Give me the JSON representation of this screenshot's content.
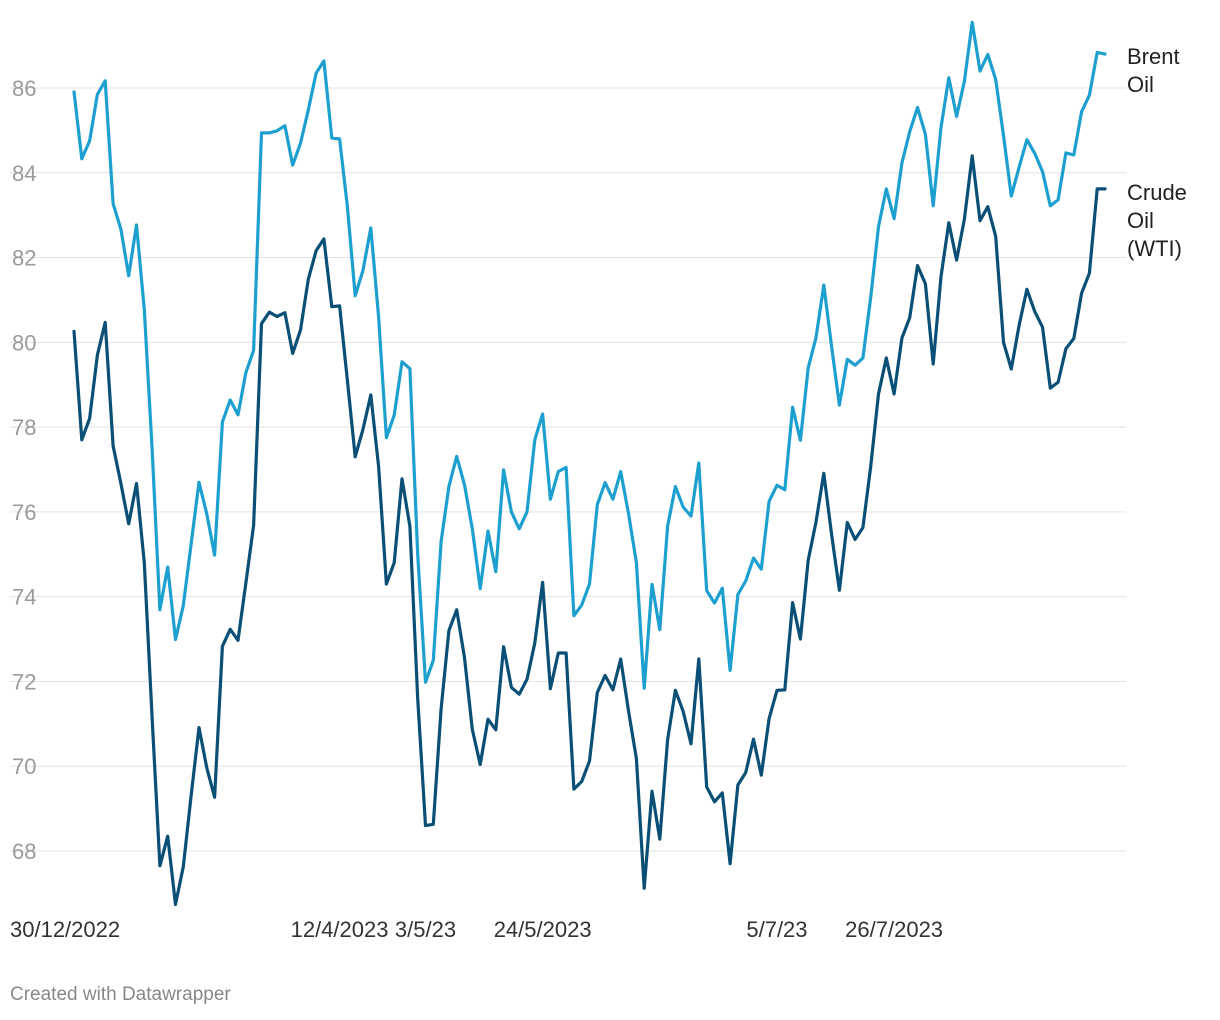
{
  "credit": "Created with Datawrapper",
  "chart_data": {
    "type": "line",
    "title": "",
    "xlabel": "",
    "ylabel": "",
    "ylim": [
      66.8,
      87.8
    ],
    "yticks": [
      68,
      70,
      72,
      74,
      76,
      78,
      80,
      82,
      84,
      86
    ],
    "grid": true,
    "legend": "direct labels at line ends (right)",
    "x_tick_labels": [
      {
        "label": "30/12/2022",
        "index": 0
      },
      {
        "label": "12/4/2023",
        "index": 34
      },
      {
        "label": "3/5/23",
        "index": 45
      },
      {
        "label": "24/5/2023",
        "index": 60
      },
      {
        "label": "5/7/23",
        "index": 90
      },
      {
        "label": "26/7/2023",
        "index": 105
      }
    ],
    "series": [
      {
        "name": "Brent Oil",
        "color": "#1da0cf",
        "values": [
          85.91,
          84.33,
          84.75,
          85.85,
          86.17,
          83.27,
          82.67,
          81.57,
          82.77,
          80.77,
          77.49,
          73.69,
          74.7,
          72.99,
          73.79,
          75.26,
          76.7,
          75.95,
          74.98,
          78.12,
          78.64,
          78.29,
          79.28,
          79.81,
          84.94,
          84.94,
          84.99,
          85.11,
          84.18,
          84.7,
          85.48,
          86.35,
          86.64,
          84.82,
          84.8,
          83.2,
          81.1,
          81.7,
          82.7,
          80.6,
          77.75,
          78.28,
          79.54,
          79.38,
          75.0,
          71.98,
          72.5,
          75.3,
          76.6,
          77.31,
          76.64,
          75.6,
          74.19,
          75.55,
          74.59,
          76.99,
          76.0,
          75.6,
          76.0,
          77.7,
          78.31,
          76.3,
          76.95,
          77.05,
          73.55,
          73.8,
          74.3,
          76.17,
          76.69,
          76.3,
          76.95,
          75.95,
          74.8,
          71.84,
          74.29,
          73.22,
          75.66,
          76.6,
          76.11,
          75.9,
          77.15,
          74.14,
          73.85,
          74.2,
          72.26,
          74.05,
          74.37,
          74.91,
          74.65,
          76.25,
          76.63,
          76.52,
          78.47,
          77.69,
          79.4,
          80.11,
          81.35,
          79.9,
          78.52,
          79.6,
          79.46,
          79.63,
          81.06,
          82.73,
          83.62,
          82.92,
          84.23,
          84.97,
          85.54,
          84.91,
          83.22,
          85.07,
          86.24,
          85.33,
          86.16,
          87.55,
          86.4,
          86.79,
          86.2,
          84.88,
          83.45,
          84.13,
          84.78,
          84.46,
          84.03,
          83.22,
          83.36,
          84.47,
          84.42,
          85.44,
          85.83,
          86.84,
          86.8
        ]
      },
      {
        "name": "Crude Oil (WTI)",
        "color": "#0a4f75",
        "values": [
          80.26,
          77.7,
          78.2,
          79.7,
          80.47,
          77.56,
          76.67,
          75.72,
          76.67,
          74.8,
          71.15,
          67.65,
          68.35,
          66.74,
          67.63,
          69.32,
          70.91,
          69.96,
          69.27,
          72.83,
          73.23,
          72.97,
          74.31,
          75.68,
          80.44,
          80.71,
          80.61,
          80.7,
          79.74,
          80.29,
          81.49,
          82.16,
          82.44,
          80.84,
          80.86,
          79.1,
          77.3,
          77.95,
          78.76,
          77.07,
          74.3,
          74.8,
          76.78,
          75.66,
          71.6,
          68.6,
          68.63,
          71.35,
          73.2,
          73.69,
          72.56,
          70.87,
          70.04,
          71.11,
          70.86,
          72.82,
          71.86,
          71.7,
          72.05,
          72.91,
          74.34,
          71.83,
          72.67,
          72.67,
          69.46,
          69.64,
          70.12,
          71.74,
          72.14,
          71.8,
          72.53,
          71.29,
          70.18,
          67.12,
          69.41,
          68.28,
          70.62,
          71.79,
          71.29,
          70.53,
          72.53,
          69.51,
          69.16,
          69.37,
          67.7,
          69.56,
          69.85,
          70.64,
          69.79,
          71.12,
          71.79,
          71.8,
          73.86,
          73.0,
          74.86,
          75.76,
          76.91,
          75.47,
          74.15,
          75.75,
          75.35,
          75.63,
          77.07,
          78.78,
          79.63,
          78.78,
          80.1,
          80.58,
          81.81,
          81.38,
          79.49,
          81.55,
          82.82,
          81.94,
          82.91,
          84.4,
          82.87,
          83.2,
          82.5,
          80.0,
          79.37,
          80.4,
          81.25,
          80.73,
          80.36,
          78.92,
          79.06,
          79.85,
          80.09,
          81.16,
          81.63,
          83.62,
          83.62
        ]
      }
    ],
    "series_labels": [
      {
        "lines": [
          "Brent",
          "Oil"
        ]
      },
      {
        "lines": [
          "Crude",
          "Oil",
          "(WTI)"
        ]
      }
    ]
  }
}
